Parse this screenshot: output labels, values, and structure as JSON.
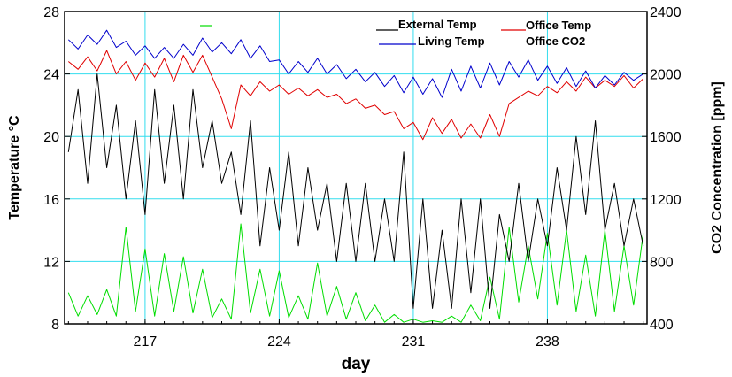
{
  "chart_data": {
    "type": "line",
    "title": "",
    "xlabel": "day",
    "ylabel_left": "Temperature °C",
    "ylabel_right": "CO2 Concentration [ppm]",
    "xlim": [
      212.8,
      243.2
    ],
    "ylim_left": [
      8,
      28
    ],
    "ylim_right": [
      400,
      2400
    ],
    "x_ticks": [
      217,
      224,
      231,
      238
    ],
    "x_tick_labels": [
      "217",
      "224",
      "231",
      "238"
    ],
    "y_left_ticks": [
      8,
      12,
      16,
      20,
      24,
      28
    ],
    "y_left_tick_labels": [
      "8",
      "12",
      "16",
      "20",
      "24",
      "28"
    ],
    "y_right_ticks": [
      400,
      800,
      1200,
      1600,
      2000,
      2400
    ],
    "y_right_tick_labels": [
      "400",
      "800",
      "1200",
      "1600",
      "2000",
      "2400"
    ],
    "grid": true,
    "legend_position": "top-right",
    "series": [
      {
        "name": "External Temp",
        "axis": "left",
        "color": "#000000",
        "x": [
          213,
          213.5,
          214,
          214.5,
          215,
          215.5,
          216,
          216.5,
          217,
          217.5,
          218,
          218.5,
          219,
          219.5,
          220,
          220.5,
          221,
          221.5,
          222,
          222.5,
          223,
          223.5,
          224,
          224.5,
          225,
          225.5,
          226,
          226.5,
          227,
          227.5,
          228,
          228.5,
          229,
          229.5,
          230,
          230.5,
          231,
          231.5,
          232,
          232.5,
          233,
          233.5,
          234,
          234.5,
          235,
          235.5,
          236,
          236.5,
          237,
          237.5,
          238,
          238.5,
          239,
          239.5,
          240,
          240.5,
          241,
          241.5,
          242,
          242.5,
          243
        ],
        "y": [
          19,
          23,
          17,
          24,
          18,
          22,
          16,
          21,
          15,
          23,
          17,
          22,
          16,
          23,
          18,
          21,
          17,
          19,
          15,
          21,
          13,
          18,
          14,
          19,
          13,
          18,
          14,
          17,
          12,
          17,
          12,
          17,
          12,
          16,
          12,
          19,
          9,
          16,
          9,
          14,
          9,
          16,
          10,
          16,
          9,
          15,
          12,
          17,
          12,
          16,
          13,
          18,
          14,
          20,
          15,
          21,
          14,
          17,
          13,
          16,
          13
        ]
      },
      {
        "name": "Living Temp",
        "axis": "left",
        "color": "#0000cc",
        "x": [
          213,
          213.5,
          214,
          214.5,
          215,
          215.5,
          216,
          216.5,
          217,
          217.5,
          218,
          218.5,
          219,
          219.5,
          220,
          220.5,
          221,
          221.5,
          222,
          222.5,
          223,
          223.5,
          224,
          224.5,
          225,
          225.5,
          226,
          226.5,
          227,
          227.5,
          228,
          228.5,
          229,
          229.5,
          230,
          230.5,
          231,
          231.5,
          232,
          232.5,
          233,
          233.5,
          234,
          234.5,
          235,
          235.5,
          236,
          236.5,
          237,
          237.5,
          238,
          238.5,
          239,
          239.5,
          240,
          240.5,
          241,
          241.5,
          242,
          242.5,
          243
        ],
        "y": [
          26.2,
          25.6,
          26.5,
          25.9,
          26.8,
          25.7,
          26.1,
          25.2,
          25.8,
          25.0,
          25.7,
          25.0,
          25.9,
          25.2,
          26.3,
          25.4,
          26.0,
          25.3,
          26.2,
          25.0,
          25.8,
          24.8,
          24.9,
          24.0,
          24.8,
          24.1,
          25.0,
          24.0,
          24.6,
          23.7,
          24.3,
          23.5,
          24.1,
          23.2,
          23.9,
          22.8,
          23.8,
          22.7,
          23.7,
          22.5,
          24.3,
          22.9,
          24.5,
          23.1,
          24.7,
          23.3,
          24.8,
          23.8,
          24.9,
          23.6,
          24.5,
          23.4,
          24.4,
          23.2,
          24.2,
          23.1,
          23.9,
          23.3,
          24.1,
          23.6,
          24.0
        ]
      },
      {
        "name": "Office Temp",
        "axis": "left",
        "color": "#e00000",
        "x": [
          213,
          213.5,
          214,
          214.5,
          215,
          215.5,
          216,
          216.5,
          217,
          217.5,
          218,
          218.5,
          219,
          219.5,
          220,
          220.5,
          221,
          221.5,
          222,
          222.5,
          223,
          223.5,
          224,
          224.5,
          225,
          225.5,
          226,
          226.5,
          227,
          227.5,
          228,
          228.5,
          229,
          229.5,
          230,
          230.5,
          231,
          231.5,
          232,
          232.5,
          233,
          233.5,
          234,
          234.5,
          235,
          235.5,
          236,
          236.5,
          237,
          237.5,
          238,
          238.5,
          239,
          239.5,
          240,
          240.5,
          241,
          241.5,
          242,
          242.5,
          243
        ],
        "y": [
          24.8,
          24.3,
          25.1,
          24.2,
          25.5,
          24.0,
          24.8,
          23.6,
          24.7,
          23.8,
          25.0,
          23.5,
          25.2,
          24.1,
          25.2,
          23.8,
          22.4,
          20.5,
          23.3,
          22.6,
          23.5,
          22.9,
          23.3,
          22.7,
          23.1,
          22.6,
          23.0,
          22.5,
          22.7,
          22.1,
          22.4,
          21.8,
          22.0,
          21.4,
          21.6,
          20.5,
          20.9,
          19.8,
          21.2,
          20.2,
          21.1,
          19.9,
          20.8,
          19.9,
          21.4,
          20.0,
          22.1,
          22.5,
          22.9,
          22.6,
          23.2,
          22.8,
          23.5,
          22.9,
          23.8,
          23.1,
          23.6,
          23.2,
          23.9,
          23.1,
          23.7
        ]
      },
      {
        "name": "Office CO2",
        "axis": "right",
        "color": "#00dd00",
        "x": [
          213,
          213.5,
          214,
          214.5,
          215,
          215.5,
          216,
          216.5,
          217,
          217.5,
          218,
          218.5,
          219,
          219.5,
          220,
          220.5,
          221,
          221.5,
          222,
          222.5,
          223,
          223.5,
          224,
          224.5,
          225,
          225.5,
          226,
          226.5,
          227,
          227.5,
          228,
          228.5,
          229,
          229.5,
          230,
          230.5,
          231,
          231.5,
          232,
          232.5,
          233,
          233.5,
          234,
          234.5,
          235,
          235.5,
          236,
          236.5,
          237,
          237.5,
          238,
          238.5,
          239,
          239.5,
          240,
          240.5,
          241,
          241.5,
          242,
          242.5,
          243
        ],
        "y": [
          600,
          450,
          580,
          460,
          620,
          450,
          1020,
          480,
          880,
          450,
          850,
          480,
          830,
          470,
          750,
          440,
          560,
          430,
          1040,
          470,
          750,
          450,
          740,
          440,
          580,
          430,
          790,
          450,
          640,
          430,
          600,
          420,
          520,
          410,
          460,
          410,
          430,
          410,
          420,
          410,
          450,
          410,
          520,
          420,
          700,
          430,
          1020,
          540,
          900,
          560,
          980,
          520,
          1000,
          480,
          840,
          450,
          1000,
          480,
          900,
          520,
          980
        ]
      }
    ]
  }
}
